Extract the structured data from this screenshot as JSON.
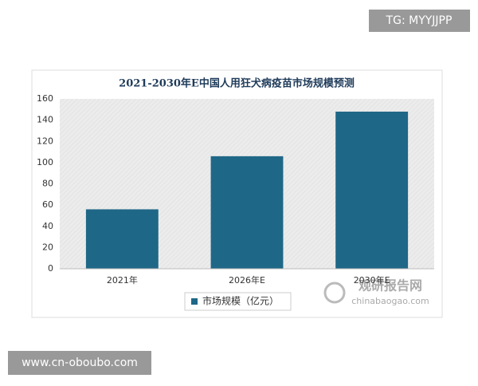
{
  "chart_data": {
    "type": "bar",
    "title": "2021-2030年E中国人用狂犬病疫苗市场规模预测",
    "categories": [
      "2021年",
      "2026年E",
      "2030年E"
    ],
    "series": [
      {
        "name": "市场规模（亿元）",
        "color": "#1f6787",
        "values": [
          56,
          106,
          148
        ]
      }
    ],
    "ylim": [
      0,
      160
    ],
    "yticks": [
      0,
      20,
      40,
      60,
      80,
      100,
      120,
      140,
      160
    ],
    "grid": false,
    "legend": "bottom"
  },
  "watermarks": {
    "top_right": "TG: MYYJJPP",
    "bottom_left": "www.cn-oboubo.com",
    "logo_name": "观研报告网",
    "logo_url": "chinabaogao.com"
  }
}
